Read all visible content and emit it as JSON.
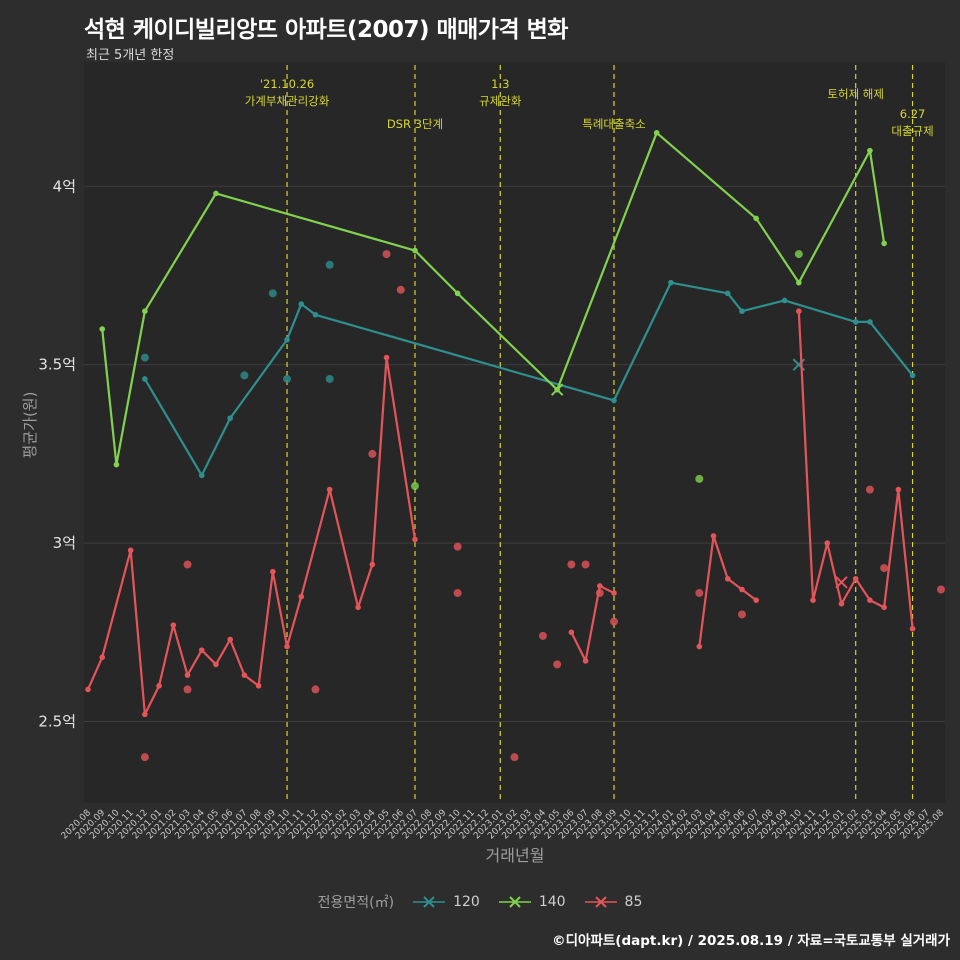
{
  "header": {
    "title": "석현 케이디빌리앙뜨 아파트(2007) 매매가격 변화",
    "subtitle": "최근 5개년 한정"
  },
  "axes": {
    "y_label": "평균가(원)",
    "x_label": "거래년월",
    "y_ticks": [
      {
        "value": 2.5,
        "label": "2.5억"
      },
      {
        "value": 3.0,
        "label": "3억"
      },
      {
        "value": 3.5,
        "label": "3.5억"
      },
      {
        "value": 4.0,
        "label": "4억"
      }
    ]
  },
  "legend": {
    "title": "전용면적(㎡)",
    "items": [
      {
        "label": "120",
        "color": "#2f8f8f"
      },
      {
        "label": "140",
        "color": "#82d24f"
      },
      {
        "label": "85",
        "color": "#e4555a"
      }
    ]
  },
  "footer": {
    "credit": "©디아파트(dapt.kr) / 2025.08.19 / 자료=국토교통부 실거래가"
  },
  "colors": {
    "background": "#2d2d2d",
    "plot_background": "#272727",
    "grid": "#3e3e3e",
    "annotation": "#d6d632",
    "y_tick_text": "#e3e3e3",
    "x_tick_text": "#c9c9c9",
    "axis_title": "#9e9e9e",
    "title_text": "#ffffff"
  },
  "chart_data": {
    "type": "line",
    "title": "석현 케이디빌리앙뜨 아파트(2007) 매매가격 변화",
    "xlabel": "거래년월",
    "ylabel": "평균가(원)",
    "ylim": [
      2.28,
      4.34
    ],
    "grid": "horizontal",
    "legend_position": "bottom",
    "x_categories": [
      "2020.08",
      "2020.09",
      "2020.10",
      "2020.11",
      "2020.12",
      "2021.01",
      "2021.02",
      "2021.03",
      "2021.04",
      "2021.05",
      "2021.06",
      "2021.07",
      "2021.08",
      "2021.09",
      "2021.10",
      "2021.11",
      "2021.12",
      "2022.01",
      "2022.02",
      "2022.03",
      "2022.04",
      "2022.05",
      "2022.06",
      "2022.07",
      "2022.08",
      "2022.09",
      "2022.10",
      "2022.11",
      "2022.12",
      "2023.01",
      "2023.02",
      "2023.03",
      "2023.04",
      "2023.05",
      "2023.06",
      "2023.07",
      "2023.08",
      "2023.09",
      "2023.10",
      "2023.11",
      "2023.12",
      "2024.01",
      "2024.02",
      "2024.03",
      "2024.04",
      "2024.05",
      "2024.06",
      "2024.07",
      "2024.08",
      "2024.09",
      "2024.10",
      "2024.11",
      "2024.12",
      "2025.01",
      "2025.02",
      "2025.03",
      "2025.04",
      "2025.05",
      "2025.06",
      "2025.07",
      "2025.08"
    ],
    "annotations": [
      {
        "month": "2021.10",
        "y": 88,
        "lines": [
          "'21.10.26",
          "가계부채관리강화"
        ]
      },
      {
        "month": "2022.07",
        "y": 128,
        "lines": [
          "DSR 3단계"
        ]
      },
      {
        "month": "2023.01",
        "y": 88,
        "lines": [
          "1.3",
          "규제완화"
        ]
      },
      {
        "month": "2023.09",
        "y": 128,
        "lines": [
          "특례대출축소"
        ]
      },
      {
        "month": "2025.02",
        "y": 98,
        "lines": [
          "토허제 해제"
        ]
      },
      {
        "month": "2025.06",
        "y": 118,
        "lines": [
          "6.27",
          "대출규제"
        ]
      }
    ],
    "series": [
      {
        "name": "120",
        "color": "#2f8f8f",
        "segments": [
          [
            [
              "2020.12",
              3.46
            ],
            [
              "2021.04",
              3.19
            ],
            [
              "2021.06",
              3.35
            ],
            [
              "2021.10",
              3.57
            ],
            [
              "2021.11",
              3.67
            ],
            [
              "2021.12",
              3.64
            ],
            [
              "2023.09",
              3.4
            ],
            [
              "2024.01",
              3.73
            ],
            [
              "2024.05",
              3.7
            ],
            [
              "2024.06",
              3.65
            ],
            [
              "2024.09",
              3.68
            ],
            [
              "2025.02",
              3.62
            ],
            [
              "2025.03",
              3.62
            ],
            [
              "2025.06",
              3.47
            ]
          ]
        ],
        "scatter": [
          [
            "2020.12",
            3.52
          ],
          [
            "2021.07",
            3.47
          ],
          [
            "2021.09",
            3.7
          ],
          [
            "2021.10",
            3.46
          ],
          [
            "2022.01",
            3.78
          ],
          [
            "2022.01",
            3.46
          ]
        ],
        "x_markers": [
          [
            "2024.10",
            3.5
          ]
        ]
      },
      {
        "name": "140",
        "color": "#82d24f",
        "segments": [
          [
            [
              "2020.09",
              3.6
            ],
            [
              "2020.10",
              3.22
            ],
            [
              "2020.12",
              3.65
            ],
            [
              "2021.05",
              3.98
            ],
            [
              "2022.07",
              3.82
            ],
            [
              "2022.10",
              3.7
            ],
            [
              "2023.05",
              3.43
            ],
            [
              "2023.12",
              4.15
            ],
            [
              "2024.07",
              3.91
            ],
            [
              "2024.10",
              3.73
            ],
            [
              "2025.03",
              4.1
            ],
            [
              "2025.04",
              3.84
            ]
          ]
        ],
        "scatter": [
          [
            "2022.07",
            3.16
          ],
          [
            "2024.03",
            3.18
          ],
          [
            "2024.10",
            3.81
          ]
        ],
        "x_markers": [
          [
            "2023.05",
            3.43
          ]
        ]
      },
      {
        "name": "85",
        "color": "#e4555a",
        "segments": [
          [
            [
              "2020.08",
              2.59
            ],
            [
              "2020.09",
              2.68
            ],
            [
              "2020.11",
              2.98
            ],
            [
              "2020.12",
              2.52
            ],
            [
              "2021.01",
              2.6
            ],
            [
              "2021.02",
              2.77
            ],
            [
              "2021.03",
              2.63
            ],
            [
              "2021.04",
              2.7
            ],
            [
              "2021.05",
              2.66
            ],
            [
              "2021.06",
              2.73
            ],
            [
              "2021.07",
              2.63
            ],
            [
              "2021.08",
              2.6
            ],
            [
              "2021.09",
              2.92
            ],
            [
              "2021.10",
              2.71
            ],
            [
              "2021.11",
              2.85
            ],
            [
              "2022.01",
              3.15
            ],
            [
              "2022.03",
              2.82
            ],
            [
              "2022.04",
              2.94
            ],
            [
              "2022.05",
              3.52
            ],
            [
              "2022.07",
              3.01
            ]
          ],
          [
            [
              "2023.06",
              2.75
            ],
            [
              "2023.07",
              2.67
            ],
            [
              "2023.08",
              2.88
            ],
            [
              "2023.09",
              2.86
            ]
          ],
          [
            [
              "2024.03",
              2.71
            ],
            [
              "2024.04",
              3.02
            ],
            [
              "2024.05",
              2.9
            ],
            [
              "2024.06",
              2.87
            ],
            [
              "2024.07",
              2.84
            ]
          ],
          [
            [
              "2024.10",
              3.65
            ],
            [
              "2024.11",
              2.84
            ],
            [
              "2024.12",
              3.0
            ],
            [
              "2025.01",
              2.83
            ],
            [
              "2025.02",
              2.9
            ],
            [
              "2025.03",
              2.84
            ],
            [
              "2025.04",
              2.82
            ],
            [
              "2025.05",
              3.15
            ],
            [
              "2025.06",
              2.76
            ]
          ]
        ],
        "scatter": [
          [
            "2020.12",
            2.4
          ],
          [
            "2021.03",
            2.94
          ],
          [
            "2021.03",
            2.59
          ],
          [
            "2021.12",
            2.59
          ],
          [
            "2022.04",
            3.25
          ],
          [
            "2022.05",
            3.81
          ],
          [
            "2022.06",
            3.71
          ],
          [
            "2022.10",
            2.99
          ],
          [
            "2022.10",
            2.86
          ],
          [
            "2023.02",
            2.4
          ],
          [
            "2023.04",
            2.74
          ],
          [
            "2023.05",
            2.66
          ],
          [
            "2023.06",
            2.94
          ],
          [
            "2023.07",
            2.94
          ],
          [
            "2023.08",
            2.86
          ],
          [
            "2023.09",
            2.78
          ],
          [
            "2024.03",
            2.86
          ],
          [
            "2024.06",
            2.8
          ],
          [
            "2025.03",
            3.15
          ],
          [
            "2025.04",
            2.93
          ],
          [
            "2025.08",
            2.87
          ]
        ],
        "x_markers": [
          [
            "2025.01",
            2.89
          ]
        ]
      }
    ]
  }
}
